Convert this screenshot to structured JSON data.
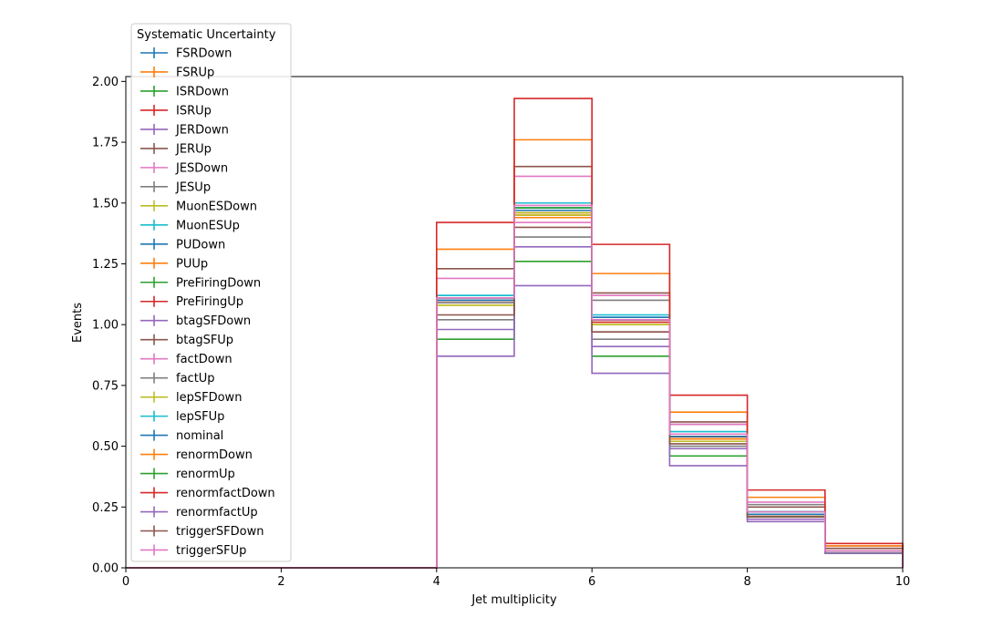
{
  "chart_data": {
    "type": "step-histogram",
    "xlabel": "Jet multiplicity",
    "ylabel": "Events",
    "xlim": [
      0,
      10
    ],
    "ylim": [
      0,
      2.02
    ],
    "xticks": [
      "0",
      "2",
      "4",
      "6",
      "8",
      "10"
    ],
    "yticks": [
      "0.00",
      "0.25",
      "0.50",
      "0.75",
      "1.00",
      "1.25",
      "1.50",
      "1.75",
      "2.00"
    ],
    "grid": false,
    "legend_title": "Systematic Uncertainty",
    "legend_position": "upper-left",
    "bin_edges": [
      0,
      1,
      2,
      3,
      4,
      5,
      6,
      7,
      8,
      9,
      10
    ],
    "series": [
      {
        "name": "FSRDown",
        "color": "#1f77b4",
        "values": [
          0,
          0,
          0,
          0,
          1.11,
          1.48,
          1.02,
          0.55,
          0.23,
          0.07
        ]
      },
      {
        "name": "FSRUp",
        "color": "#ff7f0e",
        "values": [
          0,
          0,
          0,
          0,
          1.09,
          1.45,
          1.01,
          0.53,
          0.22,
          0.07
        ]
      },
      {
        "name": "ISRDown",
        "color": "#2ca02c",
        "values": [
          0,
          0,
          0,
          0,
          1.1,
          1.47,
          1.02,
          0.54,
          0.22,
          0.07
        ]
      },
      {
        "name": "ISRUp",
        "color": "#d62728",
        "values": [
          0,
          0,
          0,
          0,
          1.09,
          1.46,
          1.01,
          0.54,
          0.22,
          0.07
        ]
      },
      {
        "name": "JERDown",
        "color": "#9467bd",
        "values": [
          0,
          0,
          0,
          0,
          1.11,
          1.47,
          1.02,
          0.55,
          0.23,
          0.07
        ]
      },
      {
        "name": "JERUp",
        "color": "#8c564b",
        "values": [
          0,
          0,
          0,
          0,
          1.1,
          1.47,
          1.02,
          0.54,
          0.22,
          0.07
        ]
      },
      {
        "name": "JESDown",
        "color": "#e377c2",
        "values": [
          0,
          0,
          0,
          0,
          1.19,
          1.42,
          0.97,
          0.49,
          0.2,
          0.06
        ]
      },
      {
        "name": "JESUp",
        "color": "#7f7f7f",
        "values": [
          0,
          0,
          0,
          0,
          1.02,
          1.5,
          1.1,
          0.59,
          0.26,
          0.08
        ]
      },
      {
        "name": "MuonESDown",
        "color": "#bcbd22",
        "values": [
          0,
          0,
          0,
          0,
          1.1,
          1.46,
          1.02,
          0.54,
          0.22,
          0.07
        ]
      },
      {
        "name": "MuonESUp",
        "color": "#17becf",
        "values": [
          0,
          0,
          0,
          0,
          1.11,
          1.48,
          1.03,
          0.55,
          0.23,
          0.07
        ]
      },
      {
        "name": "PUDown",
        "color": "#1f77b4",
        "values": [
          0,
          0,
          0,
          0,
          1.12,
          1.5,
          1.03,
          0.55,
          0.23,
          0.07
        ]
      },
      {
        "name": "PUUp",
        "color": "#ff7f0e",
        "values": [
          0,
          0,
          0,
          0,
          1.08,
          1.44,
          1.0,
          0.53,
          0.22,
          0.07
        ]
      },
      {
        "name": "PreFiringDown",
        "color": "#2ca02c",
        "values": [
          0,
          0,
          0,
          0,
          1.11,
          1.48,
          1.02,
          0.55,
          0.23,
          0.07
        ]
      },
      {
        "name": "PreFiringUp",
        "color": "#d62728",
        "values": [
          0,
          0,
          0,
          0,
          1.1,
          1.47,
          1.02,
          0.54,
          0.22,
          0.07
        ]
      },
      {
        "name": "btagSFDown",
        "color": "#9467bd",
        "values": [
          0,
          0,
          0,
          0,
          0.98,
          1.32,
          0.91,
          0.49,
          0.2,
          0.06
        ]
      },
      {
        "name": "btagSFUp",
        "color": "#8c564b",
        "values": [
          0,
          0,
          0,
          0,
          1.23,
          1.65,
          1.13,
          0.6,
          0.25,
          0.08
        ]
      },
      {
        "name": "factDown",
        "color": "#e377c2",
        "values": [
          0,
          0,
          0,
          0,
          1.11,
          1.61,
          1.12,
          0.59,
          0.27,
          0.09
        ]
      },
      {
        "name": "factUp",
        "color": "#7f7f7f",
        "values": [
          0,
          0,
          0,
          0,
          1.09,
          1.36,
          0.94,
          0.5,
          0.21,
          0.06
        ]
      },
      {
        "name": "lepSFDown",
        "color": "#bcbd22",
        "values": [
          0,
          0,
          0,
          0,
          1.08,
          1.45,
          1.0,
          0.52,
          0.21,
          0.07
        ]
      },
      {
        "name": "lepSFUp",
        "color": "#17becf",
        "values": [
          0,
          0,
          0,
          0,
          1.12,
          1.5,
          1.04,
          0.56,
          0.23,
          0.07
        ]
      },
      {
        "name": "nominal",
        "color": "#1f77b4",
        "values": [
          0,
          0,
          0,
          0,
          1.1,
          1.47,
          1.02,
          0.54,
          0.22,
          0.07
        ]
      },
      {
        "name": "renormDown",
        "color": "#ff7f0e",
        "values": [
          0,
          0,
          0,
          0,
          1.31,
          1.76,
          1.21,
          0.64,
          0.29,
          0.09
        ]
      },
      {
        "name": "renormUp",
        "color": "#2ca02c",
        "values": [
          0,
          0,
          0,
          0,
          0.94,
          1.26,
          0.87,
          0.46,
          0.21,
          0.06
        ]
      },
      {
        "name": "renormfactDown",
        "color": "#d62728",
        "values": [
          0,
          0,
          0,
          0,
          1.42,
          1.93,
          1.33,
          0.71,
          0.32,
          0.1
        ]
      },
      {
        "name": "renormfactUp",
        "color": "#9467bd",
        "values": [
          0,
          0,
          0,
          0,
          0.87,
          1.16,
          0.8,
          0.42,
          0.19,
          0.06
        ]
      },
      {
        "name": "triggerSFDown",
        "color": "#8c564b",
        "values": [
          0,
          0,
          0,
          0,
          1.04,
          1.4,
          0.97,
          0.51,
          0.21,
          0.07
        ]
      },
      {
        "name": "triggerSFUp",
        "color": "#e377c2",
        "values": [
          0,
          0,
          0,
          0,
          1.11,
          1.49,
          1.02,
          0.55,
          0.23,
          0.07
        ]
      }
    ]
  }
}
